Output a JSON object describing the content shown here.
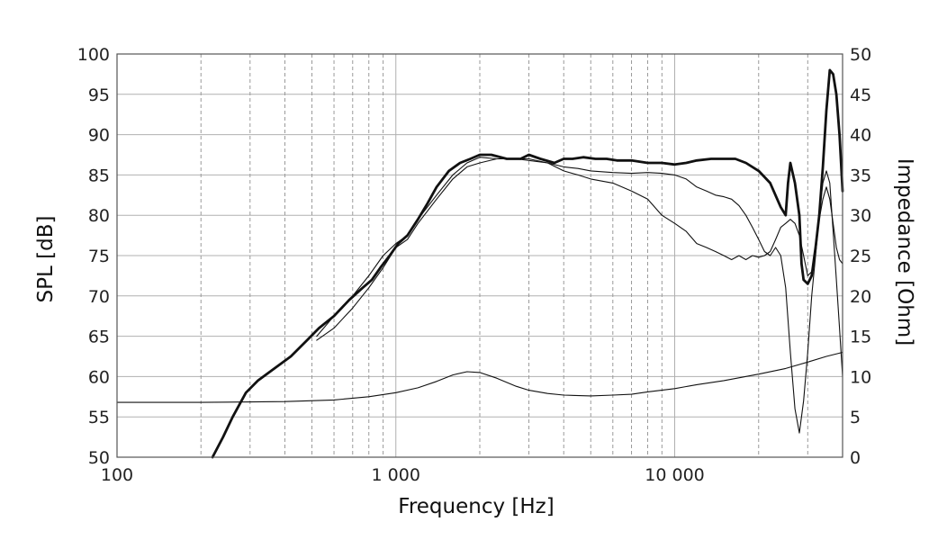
{
  "chart_data": {
    "type": "line",
    "xlabel": "Frequency [Hz]",
    "ylabel": "SPL [dB]",
    "y2label": "Impedance [Ohm]",
    "x_scale": "log",
    "xlim": [
      100,
      40000
    ],
    "ylim": [
      50,
      100
    ],
    "y2lim": [
      0,
      50
    ],
    "x_ticks": [
      {
        "value": 100,
        "label": "100"
      },
      {
        "value": 1000,
        "label": "1 000"
      },
      {
        "value": 10000,
        "label": "10 000"
      }
    ],
    "y_ticks": [
      "50",
      "55",
      "60",
      "65",
      "70",
      "75",
      "80",
      "85",
      "90",
      "95",
      "100"
    ],
    "y2_ticks": [
      "0",
      "5",
      "10",
      "15",
      "20",
      "25",
      "30",
      "35",
      "40",
      "45",
      "50"
    ],
    "grid": true,
    "series": [
      {
        "axis": "left",
        "stroke_width": 2.8,
        "points": [
          [
            220,
            50
          ],
          [
            240,
            52.5
          ],
          [
            260,
            55
          ],
          [
            290,
            58
          ],
          [
            320,
            59.5
          ],
          [
            360,
            60.8
          ],
          [
            420,
            62.5
          ],
          [
            480,
            64.5
          ],
          [
            530,
            66
          ],
          [
            600,
            67.5
          ],
          [
            680,
            69.5
          ],
          [
            760,
            71
          ],
          [
            820,
            72
          ],
          [
            880,
            73.5
          ],
          [
            950,
            75
          ],
          [
            1020,
            76.5
          ],
          [
            1100,
            77.5
          ],
          [
            1200,
            79.5
          ],
          [
            1300,
            81.5
          ],
          [
            1400,
            83.5
          ],
          [
            1550,
            85.5
          ],
          [
            1700,
            86.5
          ],
          [
            1850,
            87
          ],
          [
            2000,
            87.5
          ],
          [
            2200,
            87.5
          ],
          [
            2500,
            87
          ],
          [
            2800,
            87
          ],
          [
            3000,
            87.5
          ],
          [
            3300,
            87
          ],
          [
            3700,
            86.5
          ],
          [
            4000,
            87
          ],
          [
            4300,
            87
          ],
          [
            4700,
            87.2
          ],
          [
            5200,
            87
          ],
          [
            5700,
            87
          ],
          [
            6200,
            86.8
          ],
          [
            7000,
            86.8
          ],
          [
            8000,
            86.5
          ],
          [
            9000,
            86.5
          ],
          [
            10000,
            86.3
          ],
          [
            11000,
            86.5
          ],
          [
            12000,
            86.8
          ],
          [
            13500,
            87
          ],
          [
            15000,
            87
          ],
          [
            16500,
            87
          ],
          [
            18000,
            86.5
          ],
          [
            20000,
            85.5
          ],
          [
            22000,
            84
          ],
          [
            24000,
            81
          ],
          [
            25000,
            80
          ],
          [
            25500,
            84
          ],
          [
            26000,
            86.5
          ],
          [
            27000,
            84
          ],
          [
            28000,
            80
          ],
          [
            28500,
            74
          ],
          [
            29000,
            72
          ],
          [
            30000,
            71.5
          ],
          [
            31000,
            72.5
          ],
          [
            32000,
            76
          ],
          [
            33000,
            80
          ],
          [
            34000,
            86
          ],
          [
            35000,
            93
          ],
          [
            36000,
            98
          ],
          [
            37000,
            97.5
          ],
          [
            38000,
            95
          ],
          [
            39000,
            90
          ],
          [
            40000,
            83
          ]
        ]
      },
      {
        "axis": "left",
        "stroke_width": 1.1,
        "points": [
          [
            520,
            65
          ],
          [
            600,
            67.5
          ],
          [
            700,
            70
          ],
          [
            800,
            72.5
          ],
          [
            900,
            75
          ],
          [
            1000,
            76.5
          ],
          [
            1100,
            77.5
          ],
          [
            1200,
            79.5
          ],
          [
            1400,
            82.5
          ],
          [
            1600,
            85
          ],
          [
            1800,
            86.5
          ],
          [
            2000,
            87.2
          ],
          [
            2300,
            87
          ],
          [
            2700,
            87
          ],
          [
            3000,
            86.8
          ],
          [
            3500,
            86.5
          ],
          [
            4000,
            86
          ],
          [
            4500,
            85.8
          ],
          [
            5000,
            85.5
          ],
          [
            6000,
            85.3
          ],
          [
            7000,
            85.2
          ],
          [
            8000,
            85.3
          ],
          [
            9000,
            85.2
          ],
          [
            10000,
            85
          ],
          [
            11000,
            84.5
          ],
          [
            12000,
            83.5
          ],
          [
            13000,
            83
          ],
          [
            14000,
            82.5
          ],
          [
            15000,
            82.3
          ],
          [
            16000,
            82
          ],
          [
            17000,
            81.2
          ],
          [
            18000,
            80
          ],
          [
            19000,
            78.5
          ],
          [
            20000,
            77
          ],
          [
            21000,
            75.5
          ],
          [
            22000,
            75
          ],
          [
            23000,
            76
          ],
          [
            24000,
            75
          ],
          [
            25000,
            71
          ],
          [
            26000,
            63
          ],
          [
            27000,
            56
          ],
          [
            28000,
            53
          ],
          [
            29000,
            57
          ],
          [
            30000,
            63
          ],
          [
            31000,
            70
          ],
          [
            32000,
            75
          ],
          [
            33000,
            80
          ],
          [
            34000,
            84
          ],
          [
            35000,
            85.5
          ],
          [
            36000,
            84
          ],
          [
            37000,
            78
          ],
          [
            38000,
            72
          ],
          [
            39000,
            66
          ],
          [
            40000,
            60
          ]
        ]
      },
      {
        "axis": "left",
        "stroke_width": 1.1,
        "points": [
          [
            520,
            64.5
          ],
          [
            600,
            66
          ],
          [
            700,
            68.5
          ],
          [
            800,
            71
          ],
          [
            900,
            73.5
          ],
          [
            1000,
            76
          ],
          [
            1100,
            77
          ],
          [
            1200,
            79
          ],
          [
            1400,
            82
          ],
          [
            1600,
            84.5
          ],
          [
            1800,
            86
          ],
          [
            2000,
            86.5
          ],
          [
            2300,
            87
          ],
          [
            2700,
            87
          ],
          [
            3000,
            87
          ],
          [
            3500,
            86.5
          ],
          [
            4000,
            85.5
          ],
          [
            4500,
            85
          ],
          [
            5000,
            84.5
          ],
          [
            6000,
            84
          ],
          [
            7000,
            83
          ],
          [
            8000,
            82
          ],
          [
            9000,
            80
          ],
          [
            10000,
            79
          ],
          [
            11000,
            78
          ],
          [
            12000,
            76.5
          ],
          [
            13000,
            76
          ],
          [
            14000,
            75.5
          ],
          [
            15000,
            75
          ],
          [
            16000,
            74.5
          ],
          [
            17000,
            75
          ],
          [
            18000,
            74.5
          ],
          [
            19000,
            75
          ],
          [
            20000,
            74.8
          ],
          [
            21000,
            75
          ],
          [
            22000,
            75.5
          ],
          [
            23000,
            77
          ],
          [
            24000,
            78.5
          ],
          [
            25000,
            79
          ],
          [
            26000,
            79.5
          ],
          [
            27000,
            79
          ],
          [
            28000,
            77.5
          ],
          [
            29000,
            75
          ],
          [
            30000,
            72.5
          ],
          [
            31000,
            73
          ],
          [
            32000,
            76
          ],
          [
            33000,
            79.5
          ],
          [
            34000,
            82
          ],
          [
            35000,
            83.5
          ],
          [
            36000,
            82
          ],
          [
            37000,
            79
          ],
          [
            38000,
            76
          ],
          [
            39000,
            74.5
          ],
          [
            40000,
            74
          ]
        ]
      },
      {
        "axis": "right",
        "stroke_width": 1.1,
        "points": [
          [
            100,
            6.8
          ],
          [
            200,
            6.8
          ],
          [
            400,
            6.9
          ],
          [
            600,
            7.1
          ],
          [
            800,
            7.5
          ],
          [
            1000,
            8
          ],
          [
            1200,
            8.6
          ],
          [
            1400,
            9.4
          ],
          [
            1600,
            10.2
          ],
          [
            1800,
            10.6
          ],
          [
            2000,
            10.5
          ],
          [
            2300,
            9.8
          ],
          [
            2700,
            8.8
          ],
          [
            3000,
            8.3
          ],
          [
            3500,
            7.9
          ],
          [
            4000,
            7.7
          ],
          [
            5000,
            7.6
          ],
          [
            6000,
            7.7
          ],
          [
            7000,
            7.8
          ],
          [
            8000,
            8.1
          ],
          [
            10000,
            8.5
          ],
          [
            12000,
            9
          ],
          [
            15000,
            9.5
          ],
          [
            20000,
            10.3
          ],
          [
            25000,
            11
          ],
          [
            30000,
            11.8
          ],
          [
            35000,
            12.5
          ],
          [
            40000,
            13
          ]
        ]
      }
    ]
  }
}
